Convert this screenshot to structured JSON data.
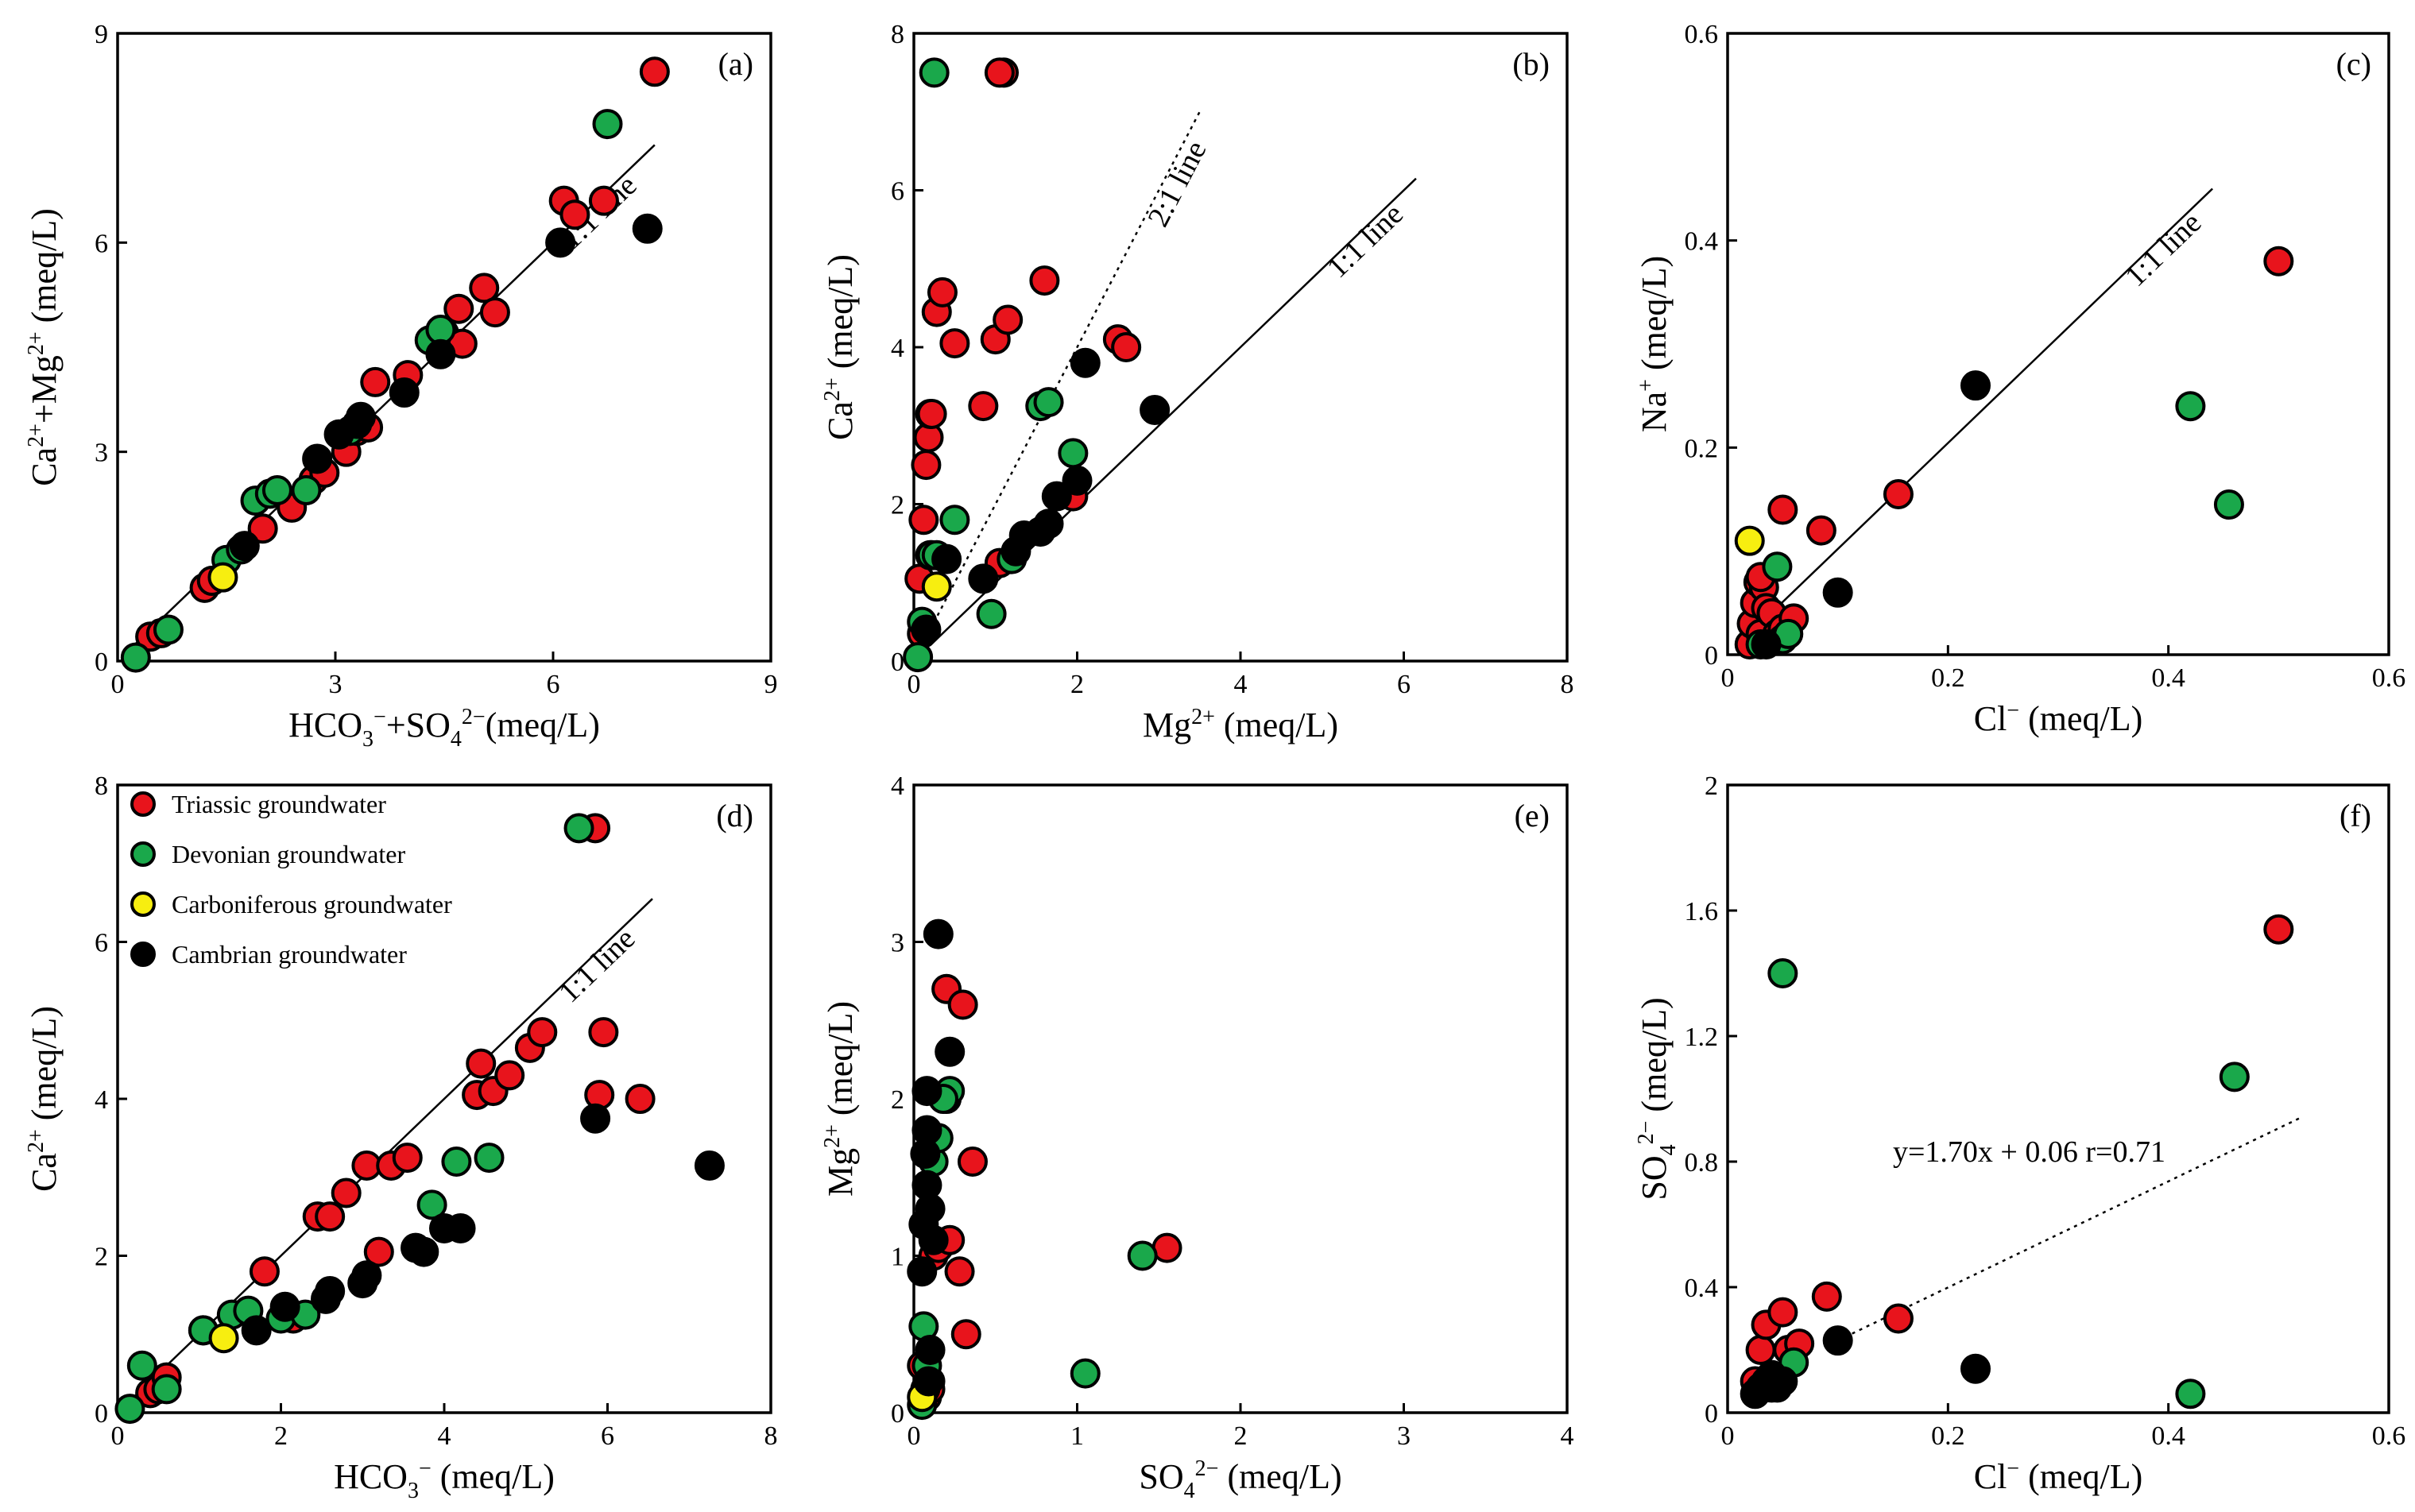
{
  "colors": {
    "Triassic": "#e8141c",
    "Devonian": "#1aa84b",
    "Carboniferous": "#f7ee10",
    "Cambrian": "#000000"
  },
  "legend": [
    {
      "group": "Triassic",
      "label": "Triassic groundwater"
    },
    {
      "group": "Devonian",
      "label": "Devonian groundwater"
    },
    {
      "group": "Carboniferous",
      "label": "Carboniferous groundwater"
    },
    {
      "group": "Cambrian",
      "label": "Cambrian groundwater"
    }
  ],
  "chart_data": [
    {
      "id": "a",
      "panel_label": "(a)",
      "type": "scatter",
      "xlabel": "HCO3−+SO42−(meq/L)",
      "ylabel": "Ca2++Mg2+ (meq/L)",
      "xlim": [
        0,
        9
      ],
      "ylim": [
        0,
        9
      ],
      "xticks": [
        "0",
        "3",
        "6",
        "9"
      ],
      "yticks": [
        "0",
        "3",
        "6",
        "9"
      ],
      "xtick_values": [
        0,
        3,
        6,
        9
      ],
      "ytick_values": [
        0,
        3,
        6,
        9
      ],
      "lines": [
        {
          "label": "1:1 line",
          "style": "solid",
          "x": [
            0.2,
            7.4
          ],
          "y": [
            0.2,
            7.4
          ]
        }
      ],
      "series": [
        {
          "group": "Triassic",
          "x": [
            0.45,
            0.6,
            1.2,
            1.3,
            2.0,
            2.4,
            2.7,
            2.85,
            3.15,
            3.3,
            3.45,
            3.55,
            4.0,
            4.5,
            4.7,
            4.75,
            5.05,
            5.2,
            6.15,
            6.3,
            6.7,
            7.4
          ],
          "y": [
            0.35,
            0.4,
            1.05,
            1.15,
            1.9,
            2.2,
            2.6,
            2.7,
            3.0,
            3.3,
            3.35,
            4.0,
            4.1,
            4.7,
            5.05,
            4.55,
            5.35,
            5.0,
            6.6,
            6.4,
            6.6,
            8.45
          ]
        },
        {
          "group": "Devonian",
          "x": [
            0.25,
            0.7,
            1.5,
            1.7,
            1.9,
            2.1,
            2.2,
            2.6,
            3.2,
            4.3,
            4.45,
            6.75
          ],
          "y": [
            0.05,
            0.45,
            1.45,
            1.6,
            2.3,
            2.4,
            2.45,
            2.45,
            3.3,
            4.6,
            4.75,
            7.7
          ]
        },
        {
          "group": "Carboniferous",
          "x": [
            1.45
          ],
          "y": [
            1.2
          ]
        },
        {
          "group": "Cambrian",
          "x": [
            1.75,
            2.75,
            3.05,
            3.3,
            3.35,
            3.95,
            4.45,
            6.1,
            7.3
          ],
          "y": [
            1.65,
            2.9,
            3.25,
            3.4,
            3.5,
            3.85,
            4.4,
            6.0,
            6.2
          ]
        }
      ]
    },
    {
      "id": "b",
      "panel_label": "(b)",
      "type": "scatter",
      "xlabel": "Mg2+ (meq/L)",
      "ylabel": "Ca2+ (meq/L)",
      "xlim": [
        0,
        8
      ],
      "ylim": [
        0,
        8
      ],
      "xticks": [
        "0",
        "2",
        "4",
        "6",
        "8"
      ],
      "yticks": [
        "0",
        "2",
        "4",
        "6",
        "8"
      ],
      "xtick_values": [
        0,
        2,
        4,
        6,
        8
      ],
      "ytick_values": [
        0,
        2,
        4,
        6,
        8
      ],
      "lines": [
        {
          "label": "1:1 line",
          "style": "solid",
          "x": [
            0.2,
            6.15
          ],
          "y": [
            0.2,
            6.15
          ]
        },
        {
          "label": "2:1 line",
          "style": "dotted",
          "x": [
            0.2,
            3.5
          ],
          "y": [
            0.4,
            7.0
          ]
        }
      ],
      "series": [
        {
          "group": "Triassic",
          "x": [
            0.07,
            0.1,
            0.12,
            0.15,
            0.18,
            0.2,
            0.22,
            0.28,
            0.35,
            0.5,
            0.85,
            1.0,
            1.05,
            1.1,
            1.15,
            1.6,
            1.95,
            2.5,
            2.6,
            1.05
          ],
          "y": [
            1.05,
            0.35,
            1.8,
            2.5,
            2.85,
            3.15,
            3.15,
            4.45,
            4.7,
            4.05,
            3.25,
            4.1,
            1.25,
            7.5,
            4.35,
            4.85,
            2.1,
            4.1,
            4.0,
            7.5
          ]
        },
        {
          "group": "Devonian",
          "x": [
            0.05,
            0.1,
            0.2,
            0.22,
            0.28,
            0.5,
            0.95,
            1.2,
            1.55,
            1.65,
            1.95,
            0.25
          ],
          "y": [
            0.05,
            0.5,
            1.35,
            1.35,
            1.35,
            1.8,
            0.6,
            1.3,
            3.25,
            3.3,
            2.65,
            7.5
          ]
        },
        {
          "group": "Carboniferous",
          "x": [
            0.28
          ],
          "y": [
            0.95
          ]
        },
        {
          "group": "Cambrian",
          "x": [
            0.15,
            0.4,
            0.85,
            1.25,
            1.35,
            1.55,
            1.65,
            1.75,
            2.0,
            2.1,
            2.95
          ],
          "y": [
            0.4,
            1.3,
            1.05,
            1.4,
            1.6,
            1.65,
            1.75,
            2.1,
            2.3,
            3.8,
            3.2
          ]
        }
      ]
    },
    {
      "id": "c",
      "panel_label": "(c)",
      "type": "scatter",
      "xlabel": "Cl− (meq/L)",
      "ylabel": "Na+ (meq/L)",
      "xlim": [
        0,
        0.6
      ],
      "ylim": [
        0,
        0.6
      ],
      "xticks": [
        "0",
        "0.2",
        "0.4",
        "0.6"
      ],
      "yticks": [
        "0",
        "0.2",
        "0.4",
        "0.6"
      ],
      "xtick_values": [
        0,
        0.2,
        0.4,
        0.6
      ],
      "ytick_values": [
        0,
        0.2,
        0.4,
        0.6
      ],
      "lines": [
        {
          "label": "1:1 line",
          "style": "solid",
          "x": [
            0.01,
            0.44
          ],
          "y": [
            0.01,
            0.45
          ]
        }
      ],
      "series": [
        {
          "group": "Triassic",
          "x": [
            0.02,
            0.022,
            0.025,
            0.028,
            0.03,
            0.033,
            0.035,
            0.04,
            0.045,
            0.05,
            0.05,
            0.06,
            0.085,
            0.155,
            0.5,
            0.03
          ],
          "y": [
            0.01,
            0.03,
            0.05,
            0.07,
            0.02,
            0.065,
            0.045,
            0.04,
            0.02,
            0.025,
            0.14,
            0.035,
            0.12,
            0.155,
            0.38,
            0.075
          ]
        },
        {
          "group": "Devonian",
          "x": [
            0.03,
            0.045,
            0.05,
            0.055,
            0.42,
            0.455
          ],
          "y": [
            0.01,
            0.085,
            0.015,
            0.02,
            0.24,
            0.145
          ]
        },
        {
          "group": "Carboniferous",
          "x": [
            0.02
          ],
          "y": [
            0.11
          ]
        },
        {
          "group": "Cambrian",
          "x": [
            0.035,
            0.1,
            0.225
          ],
          "y": [
            0.01,
            0.06,
            0.26
          ]
        }
      ]
    },
    {
      "id": "d",
      "panel_label": "(d)",
      "type": "scatter",
      "xlabel": "HCO3− (meq/L)",
      "ylabel": "Ca2+ (meq/L)",
      "xlim": [
        0,
        8
      ],
      "ylim": [
        0,
        8
      ],
      "xticks": [
        "0",
        "2",
        "4",
        "6",
        "8"
      ],
      "yticks": [
        "0",
        "2",
        "4",
        "6",
        "8"
      ],
      "xtick_values": [
        0,
        2,
        4,
        6,
        8
      ],
      "ytick_values": [
        0,
        2,
        4,
        6,
        8
      ],
      "lines": [
        {
          "label": "1:1 line",
          "style": "solid",
          "x": [
            0.2,
            6.55
          ],
          "y": [
            0.2,
            6.55
          ]
        }
      ],
      "series": [
        {
          "group": "Triassic",
          "x": [
            0.4,
            0.5,
            0.6,
            1.05,
            1.8,
            2.15,
            2.45,
            2.6,
            2.8,
            3.05,
            3.2,
            3.35,
            3.55,
            4.4,
            4.45,
            4.6,
            4.8,
            5.05,
            5.2,
            5.9,
            5.95,
            6.4,
            5.85
          ],
          "y": [
            0.25,
            0.3,
            0.45,
            1.05,
            1.8,
            1.2,
            2.5,
            2.5,
            2.8,
            3.15,
            2.05,
            3.15,
            3.25,
            4.05,
            4.45,
            4.1,
            4.3,
            4.65,
            4.85,
            4.05,
            4.85,
            4.0,
            7.45
          ]
        },
        {
          "group": "Devonian",
          "x": [
            0.15,
            0.3,
            0.6,
            1.05,
            1.4,
            1.6,
            2.0,
            2.3,
            3.85,
            4.15,
            4.55,
            5.65
          ],
          "y": [
            0.05,
            0.6,
            0.3,
            1.05,
            1.25,
            1.3,
            1.2,
            1.25,
            2.65,
            3.2,
            3.25,
            7.45
          ]
        },
        {
          "group": "Carboniferous",
          "x": [
            1.3
          ],
          "y": [
            0.95
          ]
        },
        {
          "group": "Cambrian",
          "x": [
            1.7,
            2.05,
            2.55,
            2.6,
            3.0,
            3.05,
            3.65,
            3.75,
            4.0,
            4.2,
            5.85,
            7.25
          ],
          "y": [
            1.05,
            1.35,
            1.45,
            1.55,
            1.65,
            1.75,
            2.1,
            2.05,
            2.35,
            2.35,
            3.75,
            3.15
          ]
        }
      ]
    },
    {
      "id": "e",
      "panel_label": "(e)",
      "type": "scatter",
      "xlabel": "SO42− (meq/L)",
      "ylabel": "Mg2+ (meq/L)",
      "xlim": [
        0,
        4
      ],
      "ylim": [
        0,
        4
      ],
      "xticks": [
        "0",
        "1",
        "2",
        "3",
        "4"
      ],
      "yticks": [
        "0",
        "1",
        "2",
        "3",
        "4"
      ],
      "xtick_values": [
        0,
        1,
        2,
        3,
        4
      ],
      "ytick_values": [
        0,
        1,
        2,
        3,
        4
      ],
      "lines": [],
      "series": [
        {
          "group": "Triassic",
          "x": [
            0.05,
            0.08,
            0.1,
            0.12,
            0.15,
            0.2,
            0.2,
            0.22,
            0.28,
            0.3,
            0.32,
            0.36,
            1.55,
            0.1,
            0.07
          ],
          "y": [
            0.3,
            0.1,
            0.2,
            1.0,
            1.05,
            2.0,
            2.7,
            1.1,
            0.9,
            2.6,
            0.5,
            1.6,
            1.05,
            0.15,
            0.15
          ]
        },
        {
          "group": "Devonian",
          "x": [
            0.05,
            0.06,
            0.08,
            0.12,
            0.15,
            0.22,
            1.05,
            1.4,
            0.18
          ],
          "y": [
            0.05,
            0.55,
            0.3,
            1.6,
            1.75,
            2.05,
            0.25,
            1.0,
            2.0
          ]
        },
        {
          "group": "Carboniferous",
          "x": [
            0.05
          ],
          "y": [
            0.1
          ]
        },
        {
          "group": "Cambrian",
          "x": [
            0.05,
            0.06,
            0.07,
            0.08,
            0.08,
            0.1,
            0.1,
            0.12,
            0.15,
            0.22,
            0.08,
            0.09
          ],
          "y": [
            0.9,
            1.2,
            1.65,
            1.8,
            2.05,
            1.3,
            0.4,
            1.1,
            3.05,
            2.3,
            1.45,
            0.2
          ]
        }
      ]
    },
    {
      "id": "f",
      "panel_label": "(f)",
      "type": "scatter",
      "xlabel": "Cl− (meq/L)",
      "ylabel": "SO42− (meq/L)",
      "xlim": [
        0,
        0.6
      ],
      "ylim": [
        0,
        2
      ],
      "xticks": [
        "0",
        "0.2",
        "0.4",
        "0.6"
      ],
      "yticks": [
        "0",
        "0.4",
        "0.8",
        "1.2",
        "1.6",
        "2"
      ],
      "xtick_values": [
        0,
        0.2,
        0.4,
        0.6
      ],
      "ytick_values": [
        0,
        0.4,
        0.8,
        1.2,
        1.6,
        2
      ],
      "lines": [
        {
          "label": "y=1.70x + 0.06   r=0.71",
          "style": "dotted",
          "x": [
            0.1,
            0.52
          ],
          "y": [
            0.23,
            0.94
          ]
        }
      ],
      "series": [
        {
          "group": "Triassic",
          "x": [
            0.025,
            0.03,
            0.035,
            0.05,
            0.055,
            0.065,
            0.09,
            0.155,
            0.5
          ],
          "y": [
            0.1,
            0.2,
            0.28,
            0.32,
            0.2,
            0.22,
            0.37,
            0.3,
            1.54
          ]
        },
        {
          "group": "Devonian",
          "x": [
            0.04,
            0.05,
            0.06,
            0.42,
            0.46
          ],
          "y": [
            0.08,
            1.4,
            0.16,
            0.06,
            1.07
          ]
        },
        {
          "group": "Carboniferous",
          "x": [],
          "y": []
        },
        {
          "group": "Cambrian",
          "x": [
            0.025,
            0.03,
            0.035,
            0.04,
            0.045,
            0.05,
            0.1,
            0.225
          ],
          "y": [
            0.06,
            0.08,
            0.1,
            0.12,
            0.08,
            0.1,
            0.23,
            0.14
          ]
        }
      ]
    }
  ]
}
